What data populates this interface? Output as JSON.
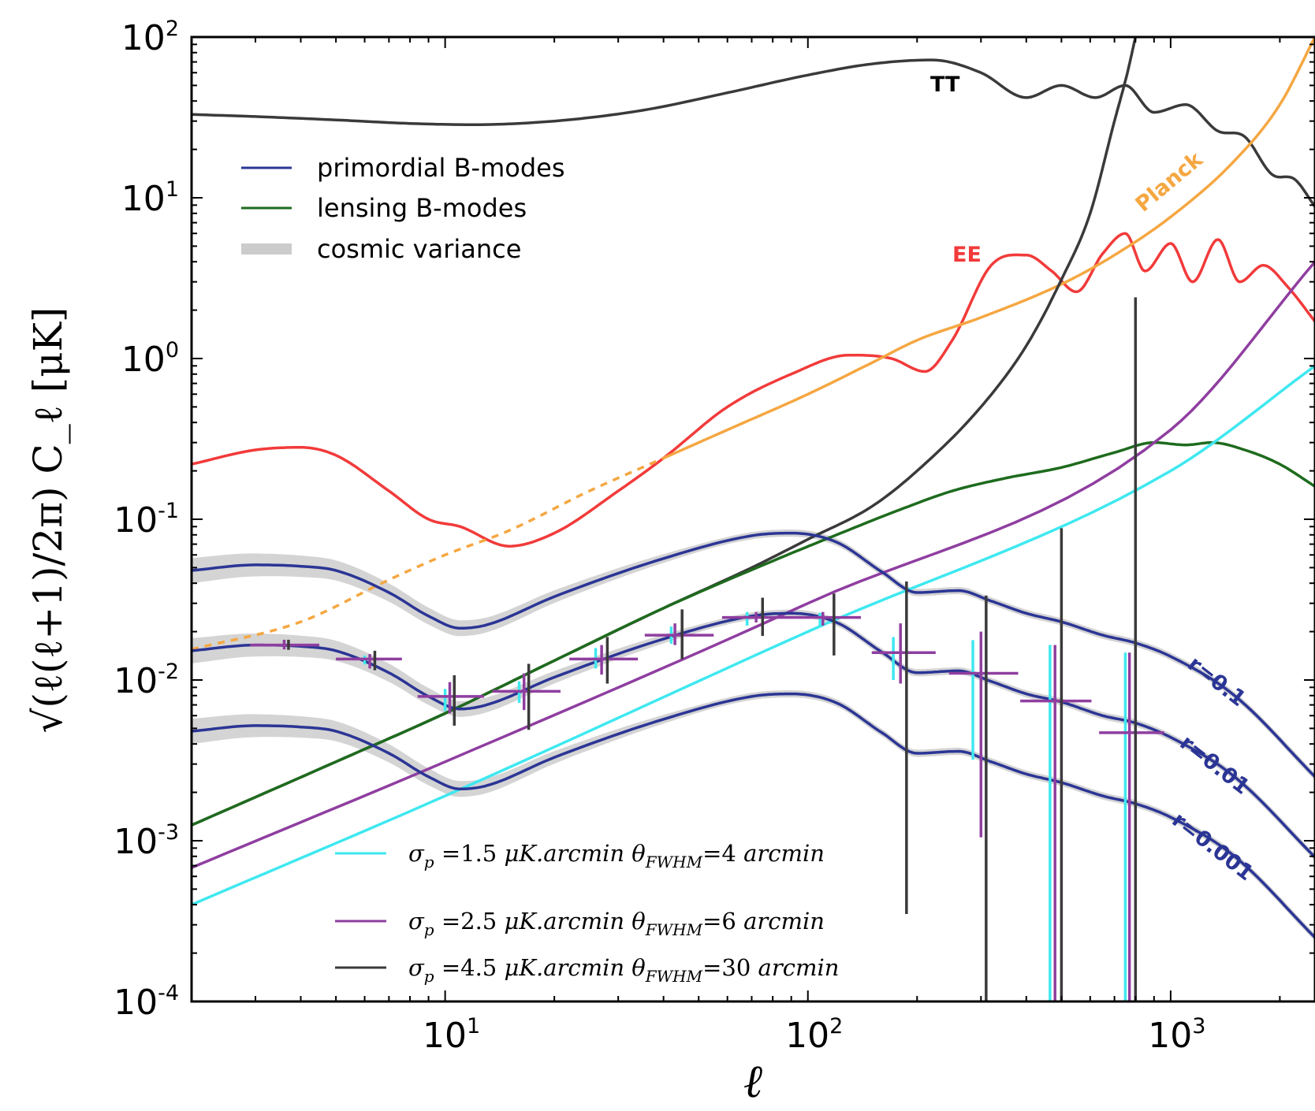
{
  "chart_data": {
    "type": "line",
    "xlabel": "ℓ",
    "ylabel": "√(ℓ(ℓ+1)/2π) C_ℓ  [μK]",
    "xscale": "log",
    "yscale": "log",
    "xlim": [
      2,
      2500
    ],
    "ylim": [
      0.0001,
      100
    ],
    "x_ticks": [
      {
        "value": 10,
        "base": "10",
        "exp": "1"
      },
      {
        "value": 100,
        "base": "10",
        "exp": "2"
      },
      {
        "value": 1000,
        "base": "10",
        "exp": "3"
      }
    ],
    "y_ticks": [
      {
        "value": 100,
        "base": "10",
        "exp": "2"
      },
      {
        "value": 10,
        "base": "10",
        "exp": "1"
      },
      {
        "value": 1,
        "base": "10",
        "exp": "0"
      },
      {
        "value": 0.1,
        "base": "10",
        "exp": "-1"
      },
      {
        "value": 0.01,
        "base": "10",
        "exp": "-2"
      },
      {
        "value": 0.001,
        "base": "10",
        "exp": "-3"
      },
      {
        "value": 0.0001,
        "base": "10",
        "exp": "-4"
      }
    ],
    "grid": false,
    "colors": {
      "primordial": "#2b3595",
      "lensing": "#1e6b1e",
      "cosmic_variance": "#cccccc",
      "TT": "#3a3a3a",
      "EE": "#f23a3a",
      "Planck": "#f5a742",
      "cyan": "#3fe8f0",
      "purple": "#8f3ea0",
      "black": "#3a3a3a"
    },
    "legend_top": {
      "placement": "upper-left",
      "entries": [
        {
          "label": "primordial B-modes",
          "color": "#2b3595"
        },
        {
          "label": "lensing B-modes",
          "color": "#1e6b1e"
        },
        {
          "label": "cosmic variance",
          "color": "#cccccc"
        }
      ]
    },
    "legend_bottom": {
      "placement": "lower-center",
      "entries": [
        {
          "sigma": "1.5",
          "unit": "μK.arcmin",
          "fwhm": "4",
          "fwhm_unit": "arcmin",
          "color": "#3fe8f0"
        },
        {
          "sigma": "2.5",
          "unit": "μK.arcmin",
          "fwhm": "6",
          "fwhm_unit": "arcmin",
          "color": "#8f3ea0"
        },
        {
          "sigma": "4.5",
          "unit": "μK.arcmin",
          "fwhm": "30",
          "fwhm_unit": "arcmin",
          "color": "#3a3a3a"
        }
      ]
    },
    "annotations": {
      "TT": "TT",
      "EE": "EE",
      "Planck": "Planck",
      "r1": "r=0.1",
      "r2": "r=0.01",
      "r3": "r=0.001"
    },
    "series": [
      {
        "name": "TT",
        "color": "#3a3a3a",
        "x": [
          2,
          3,
          5,
          8,
          12,
          20,
          35,
          60,
          100,
          150,
          220,
          300,
          400,
          500,
          620,
          750,
          900,
          1100,
          1350,
          1600,
          1900,
          2200,
          2500
        ],
        "y": [
          33,
          32,
          30.5,
          29,
          28.5,
          30,
          35,
          45,
          58,
          68,
          72,
          60,
          42,
          50,
          42,
          50,
          34,
          38,
          26,
          24,
          14,
          13,
          8.8
        ]
      },
      {
        "name": "EE",
        "color": "#f23a3a",
        "x": [
          2,
          3,
          4,
          5,
          7,
          9,
          11,
          15,
          20,
          30,
          40,
          60,
          90,
          130,
          170,
          210,
          250,
          320,
          400,
          470,
          550,
          650,
          750,
          850,
          1000,
          1150,
          1350,
          1550,
          1800,
          2100,
          2500
        ],
        "y": [
          0.22,
          0.27,
          0.28,
          0.25,
          0.15,
          0.1,
          0.09,
          0.068,
          0.082,
          0.15,
          0.24,
          0.5,
          0.8,
          1.05,
          1.0,
          0.83,
          1.3,
          3.8,
          4.4,
          3.5,
          2.6,
          4.5,
          6.0,
          3.5,
          5.2,
          3.0,
          5.5,
          3.0,
          3.8,
          2.8,
          1.7
        ]
      },
      {
        "name": "Planck",
        "color": "#f5a742",
        "x": [
          40,
          60,
          100,
          150,
          200,
          300,
          500,
          700,
          1000,
          1500,
          2000,
          2500
        ],
        "y": [
          0.24,
          0.36,
          0.6,
          0.94,
          1.3,
          1.8,
          2.9,
          4.4,
          7.6,
          17,
          38,
          100
        ]
      },
      {
        "name": "Planck-extrapolated",
        "color": "#f5a742",
        "dashed": true,
        "x": [
          2,
          4,
          7,
          10,
          15,
          25,
          40
        ],
        "y": [
          0.0155,
          0.023,
          0.042,
          0.06,
          0.085,
          0.15,
          0.24
        ]
      },
      {
        "name": "black-noise",
        "color": "#3a3a3a",
        "x": [
          2,
          5,
          10,
          20,
          40,
          70,
          100,
          150,
          200,
          300,
          400,
          500,
          600,
          700,
          760,
          800
        ],
        "y": [
          0.00125,
          0.0031,
          0.0062,
          0.0132,
          0.028,
          0.05,
          0.075,
          0.12,
          0.2,
          0.5,
          1.2,
          3.1,
          8,
          30,
          60,
          100
        ]
      },
      {
        "name": "lensing",
        "color": "#1e6b1e",
        "x": [
          2,
          5,
          10,
          20,
          40,
          80,
          120,
          180,
          250,
          350,
          500,
          700,
          900,
          1100,
          1300,
          1600,
          2000,
          2500
        ],
        "y": [
          0.00125,
          0.0031,
          0.0062,
          0.0132,
          0.028,
          0.055,
          0.08,
          0.115,
          0.15,
          0.18,
          0.21,
          0.26,
          0.3,
          0.29,
          0.3,
          0.27,
          0.22,
          0.16
        ]
      },
      {
        "name": "purple-noise",
        "color": "#8f3ea0",
        "x": [
          2,
          10,
          100,
          1000,
          2500
        ],
        "y": [
          0.00068,
          0.0031,
          0.03,
          0.36,
          4
        ]
      },
      {
        "name": "cyan-noise",
        "color": "#3fe8f0",
        "x": [
          2,
          10,
          100,
          1000,
          2500
        ],
        "y": [
          0.0004,
          0.0019,
          0.02,
          0.2,
          0.9
        ]
      },
      {
        "name": "r=0.1",
        "color": "#2b3595",
        "cv": true,
        "x": [
          2,
          3,
          4,
          5,
          7,
          9,
          11,
          13,
          20,
          40,
          70,
          90,
          120,
          160,
          200,
          260,
          320,
          400,
          500,
          650,
          800,
          1000,
          1500,
          2500
        ],
        "y": [
          0.048,
          0.052,
          0.051,
          0.048,
          0.035,
          0.025,
          0.021,
          0.022,
          0.033,
          0.057,
          0.079,
          0.082,
          0.072,
          0.047,
          0.035,
          0.036,
          0.031,
          0.026,
          0.023,
          0.019,
          0.017,
          0.014,
          0.008,
          0.0025
        ]
      },
      {
        "name": "r=0.01",
        "color": "#2b3595",
        "cv": true,
        "x": [
          2,
          3,
          4,
          5,
          7,
          9,
          11,
          13,
          20,
          40,
          70,
          90,
          120,
          160,
          200,
          260,
          320,
          400,
          500,
          650,
          800,
          1000,
          1500,
          2500
        ],
        "y": [
          0.0152,
          0.0165,
          0.0162,
          0.0152,
          0.0111,
          0.0079,
          0.0066,
          0.007,
          0.0104,
          0.018,
          0.025,
          0.026,
          0.0228,
          0.0149,
          0.0111,
          0.0114,
          0.0098,
          0.0082,
          0.0073,
          0.006,
          0.0054,
          0.0044,
          0.0025,
          0.00079
        ]
      },
      {
        "name": "r=0.001",
        "color": "#2b3595",
        "cv": true,
        "x": [
          2,
          3,
          4,
          5,
          7,
          9,
          11,
          13,
          20,
          40,
          70,
          90,
          120,
          160,
          200,
          260,
          320,
          400,
          500,
          650,
          800,
          1000,
          1500,
          2500
        ],
        "y": [
          0.0048,
          0.0052,
          0.0051,
          0.0048,
          0.0035,
          0.0025,
          0.0021,
          0.0022,
          0.0033,
          0.0057,
          0.0079,
          0.0082,
          0.0072,
          0.0047,
          0.0035,
          0.0036,
          0.0031,
          0.0026,
          0.0023,
          0.0019,
          0.0017,
          0.0014,
          0.0008,
          0.00025
        ]
      }
    ],
    "binned_points": {
      "purple": [
        {
          "x": 3.6,
          "xlo": 2.9,
          "xhi": 4.5,
          "y": 0.0165,
          "ylo": 0.0155,
          "yhi": 0.0178
        },
        {
          "x": 6.2,
          "xlo": 5,
          "xhi": 7.6,
          "y": 0.0135,
          "ylo": 0.0118,
          "yhi": 0.0145
        },
        {
          "x": 10.3,
          "xlo": 8.4,
          "xhi": 12.8,
          "y": 0.0079,
          "ylo": 0.0062,
          "yhi": 0.0097
        },
        {
          "x": 16.5,
          "xlo": 13.5,
          "xhi": 20.8,
          "y": 0.0085,
          "ylo": 0.0065,
          "yhi": 0.011
        },
        {
          "x": 27,
          "xlo": 22,
          "xhi": 34,
          "y": 0.0135,
          "ylo": 0.0108,
          "yhi": 0.0165
        },
        {
          "x": 43,
          "xlo": 35.5,
          "xhi": 55,
          "y": 0.019,
          "ylo": 0.0165,
          "yhi": 0.0225
        },
        {
          "x": 72,
          "xlo": 58,
          "xhi": 92,
          "y": 0.0245,
          "ylo": 0.0228,
          "yhi": 0.0265
        },
        {
          "x": 110,
          "xlo": 92,
          "xhi": 140,
          "y": 0.0245,
          "ylo": 0.0218,
          "yhi": 0.0265
        },
        {
          "x": 180,
          "xlo": 150,
          "xhi": 225,
          "y": 0.0148,
          "ylo": 0.0095,
          "yhi": 0.0225
        },
        {
          "x": 300,
          "xlo": 245,
          "xhi": 380,
          "y": 0.011,
          "ylo": 0.00105,
          "yhi": 0.02
        },
        {
          "x": 480,
          "xlo": 385,
          "xhi": 605,
          "y": 0.0074,
          "ylo": 0.0001,
          "yhi": 0.0165
        },
        {
          "x": 770,
          "xlo": 635,
          "xhi": 960,
          "y": 0.0047,
          "ylo": 0.0001,
          "yhi": 0.0148
        }
      ],
      "cyan": [
        {
          "x": 3.6,
          "ylo": 0.016,
          "yhi": 0.0175
        },
        {
          "x": 6.0,
          "ylo": 0.0125,
          "yhi": 0.0142
        },
        {
          "x": 10.0,
          "ylo": 0.0064,
          "yhi": 0.0088
        },
        {
          "x": 16.0,
          "ylo": 0.0072,
          "yhi": 0.0098
        },
        {
          "x": 26.0,
          "ylo": 0.0118,
          "yhi": 0.0158
        },
        {
          "x": 42.0,
          "ylo": 0.0168,
          "yhi": 0.0215
        },
        {
          "x": 68.0,
          "ylo": 0.0218,
          "yhi": 0.0265
        },
        {
          "x": 108.0,
          "ylo": 0.0218,
          "yhi": 0.0262
        },
        {
          "x": 172.0,
          "ylo": 0.01,
          "yhi": 0.0185
        },
        {
          "x": 285.0,
          "ylo": 0.0032,
          "yhi": 0.0177
        },
        {
          "x": 465.0,
          "ylo": 0.0001,
          "yhi": 0.0165
        },
        {
          "x": 750.0,
          "ylo": 0.0001,
          "yhi": 0.0148
        }
      ],
      "black": [
        {
          "x": 3.7,
          "ylo": 0.0154,
          "yhi": 0.0178
        },
        {
          "x": 6.4,
          "ylo": 0.0115,
          "yhi": 0.0152
        },
        {
          "x": 10.6,
          "ylo": 0.0052,
          "yhi": 0.0107
        },
        {
          "x": 17.0,
          "ylo": 0.0049,
          "yhi": 0.0126
        },
        {
          "x": 28.0,
          "ylo": 0.0095,
          "yhi": 0.0185
        },
        {
          "x": 45.0,
          "ylo": 0.0135,
          "yhi": 0.0275
        },
        {
          "x": 75.0,
          "ylo": 0.0188,
          "yhi": 0.0325
        },
        {
          "x": 118.0,
          "ylo": 0.0142,
          "yhi": 0.0345
        },
        {
          "x": 187.0,
          "ylo": 0.00035,
          "yhi": 0.041
        },
        {
          "x": 310.0,
          "ylo": 0.0001,
          "yhi": 0.0335
        },
        {
          "x": 500.0,
          "ylo": 0.0001,
          "yhi": 0.088
        },
        {
          "x": 800.0,
          "ylo": 0.0001,
          "yhi": 2.4
        }
      ]
    }
  }
}
